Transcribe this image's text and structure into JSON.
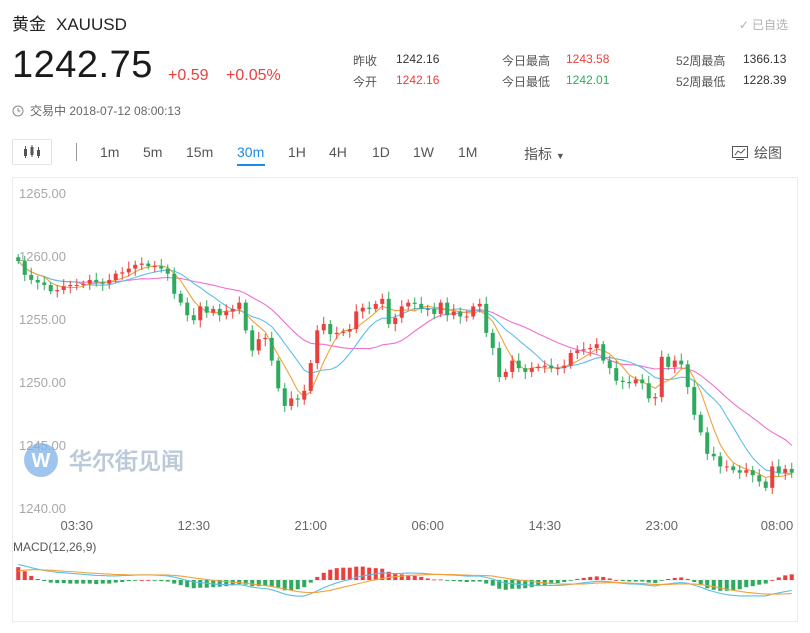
{
  "header": {
    "name": "黄金",
    "code": "XAUUSD",
    "watch_label": "已自选",
    "price": "1242.75",
    "change": "+0.59",
    "change_pct": "+0.05%",
    "status": "交易中 2018-07-12 08:00:13"
  },
  "stats": [
    {
      "label": "昨收",
      "value": "1242.16",
      "color": "#333333"
    },
    {
      "label": "今开",
      "value": "1242.16",
      "color": "#e9403e"
    },
    {
      "label": "今日最高",
      "value": "1243.58",
      "color": "#e9403e"
    },
    {
      "label": "今日最低",
      "value": "1242.01",
      "color": "#2eaa5e"
    },
    {
      "label": "52周最高",
      "value": "1366.13",
      "color": "#333333"
    },
    {
      "label": "52周最低",
      "value": "1228.39",
      "color": "#333333"
    }
  ],
  "toolbar": {
    "intervals": [
      "1m",
      "5m",
      "15m",
      "30m",
      "1H",
      "4H",
      "1D",
      "1W",
      "1M"
    ],
    "active_interval": "30m",
    "indicators_label": "指标",
    "draw_label": "绘图"
  },
  "colors": {
    "up": "#e9403e",
    "down": "#2eaa5e",
    "accent": "#1e88e5",
    "ma_pink": "#f06fd2",
    "ma_blue": "#5bbfe9",
    "ma_orange": "#f2a23a"
  },
  "watermark": "华尔街见闻",
  "chart_data": {
    "type": "candlestick",
    "ylim": [
      1240,
      1265
    ],
    "y_ticks": [
      "1265.00",
      "1260.00",
      "1255.00",
      "1250.00",
      "1245.00",
      "1240.00"
    ],
    "x_ticks": [
      "03:30",
      "12:30",
      "21:00",
      "06:00",
      "14:30",
      "23:00",
      "08:00"
    ],
    "x_tick_index": [
      9,
      27,
      45,
      63,
      81,
      99,
      117
    ],
    "close": [
      1259.6,
      1258.5,
      1258.1,
      1257.9,
      1257.7,
      1257.2,
      1257.3,
      1257.6,
      1257.7,
      1257.7,
      1257.8,
      1258.1,
      1257.9,
      1257.8,
      1258.1,
      1258.6,
      1258.7,
      1259.0,
      1259.3,
      1259.4,
      1259.2,
      1259.2,
      1259.0,
      1258.6,
      1257.0,
      1256.3,
      1255.3,
      1254.9,
      1256.0,
      1255.5,
      1255.8,
      1255.3,
      1255.6,
      1255.8,
      1256.3,
      1254.1,
      1252.5,
      1253.4,
      1253.5,
      1251.7,
      1249.5,
      1248.1,
      1248.7,
      1248.6,
      1249.3,
      1251.5,
      1254.1,
      1254.6,
      1253.8,
      1253.9,
      1254.0,
      1254.2,
      1255.6,
      1255.9,
      1255.8,
      1256.2,
      1256.6,
      1254.6,
      1255.1,
      1256.0,
      1256.3,
      1256.2,
      1255.8,
      1255.8,
      1255.4,
      1256.3,
      1255.3,
      1255.6,
      1255.2,
      1255.2,
      1256.0,
      1256.2,
      1253.9,
      1252.7,
      1250.4,
      1250.8,
      1251.7,
      1251.1,
      1250.8,
      1251.1,
      1251.2,
      1251.3,
      1251.1,
      1251.1,
      1251.3,
      1252.3,
      1252.5,
      1252.6,
      1252.7,
      1253.0,
      1251.7,
      1251.1,
      1250.1,
      1250.0,
      1249.9,
      1250.2,
      1249.9,
      1248.7,
      1248.8,
      1252.0,
      1251.2,
      1251.7,
      1251.4,
      1249.6,
      1247.4,
      1246.0,
      1244.3,
      1244.1,
      1243.3,
      1243.3,
      1243.0,
      1242.8,
      1243.0,
      1242.6,
      1242.1,
      1241.6,
      1243.3,
      1242.8,
      1243.1,
      1242.8
    ],
    "macd_dif": [
      0.6,
      0.55,
      0.48,
      0.42,
      0.37,
      0.33,
      0.3,
      0.28,
      0.26,
      0.24,
      0.22,
      0.2,
      0.18,
      0.17,
      0.16,
      0.16,
      0.17,
      0.18,
      0.19,
      0.2,
      0.2,
      0.19,
      0.18,
      0.16,
      0.11,
      0.05,
      -0.02,
      -0.08,
      -0.1,
      -0.13,
      -0.15,
      -0.17,
      -0.18,
      -0.19,
      -0.18,
      -0.22,
      -0.28,
      -0.31,
      -0.33,
      -0.38,
      -0.46,
      -0.55,
      -0.6,
      -0.63,
      -0.62,
      -0.54,
      -0.42,
      -0.3,
      -0.2,
      -0.11,
      -0.04,
      0.02,
      0.1,
      0.16,
      0.2,
      0.24,
      0.28,
      0.26,
      0.25,
      0.26,
      0.27,
      0.27,
      0.26,
      0.24,
      0.22,
      0.22,
      0.2,
      0.19,
      0.17,
      0.15,
      0.15,
      0.15,
      0.1,
      0.04,
      -0.06,
      -0.12,
      -0.14,
      -0.17,
      -0.19,
      -0.2,
      -0.21,
      -0.21,
      -0.21,
      -0.21,
      -0.2,
      -0.17,
      -0.14,
      -0.11,
      -0.08,
      -0.05,
      -0.05,
      -0.07,
      -0.1,
      -0.13,
      -0.15,
      -0.16,
      -0.17,
      -0.21,
      -0.23,
      -0.18,
      -0.15,
      -0.12,
      -0.1,
      -0.13,
      -0.2,
      -0.28,
      -0.38,
      -0.45,
      -0.52,
      -0.57,
      -0.6,
      -0.62,
      -0.62,
      -0.62,
      -0.62,
      -0.62,
      -0.55,
      -0.5,
      -0.45,
      -0.41
    ],
    "macd_dea": [
      0.35,
      0.38,
      0.4,
      0.4,
      0.39,
      0.38,
      0.36,
      0.34,
      0.33,
      0.31,
      0.29,
      0.27,
      0.26,
      0.24,
      0.23,
      0.21,
      0.21,
      0.2,
      0.2,
      0.2,
      0.2,
      0.2,
      0.2,
      0.19,
      0.18,
      0.15,
      0.12,
      0.08,
      0.05,
      0.02,
      -0.01,
      -0.04,
      -0.06,
      -0.09,
      -0.1,
      -0.13,
      -0.16,
      -0.19,
      -0.22,
      -0.25,
      -0.3,
      -0.35,
      -0.4,
      -0.45,
      -0.48,
      -0.49,
      -0.48,
      -0.44,
      -0.4,
      -0.34,
      -0.28,
      -0.22,
      -0.16,
      -0.1,
      -0.04,
      0.01,
      0.06,
      0.1,
      0.13,
      0.15,
      0.17,
      0.19,
      0.2,
      0.21,
      0.21,
      0.21,
      0.21,
      0.21,
      0.2,
      0.19,
      0.18,
      0.18,
      0.17,
      0.15,
      0.11,
      0.07,
      0.03,
      0.0,
      -0.03,
      -0.06,
      -0.09,
      -0.11,
      -0.13,
      -0.15,
      -0.16,
      -0.16,
      -0.16,
      -0.15,
      -0.14,
      -0.12,
      -0.11,
      -0.1,
      -0.1,
      -0.11,
      -0.12,
      -0.13,
      -0.14,
      -0.16,
      -0.17,
      -0.17,
      -0.17,
      -0.16,
      -0.15,
      -0.15,
      -0.16,
      -0.18,
      -0.22,
      -0.26,
      -0.31,
      -0.36,
      -0.4,
      -0.44,
      -0.48,
      -0.5,
      -0.53,
      -0.55,
      -0.55,
      -0.55,
      -0.54,
      -0.52
    ]
  },
  "macd_label": "MACD(12,26,9)"
}
